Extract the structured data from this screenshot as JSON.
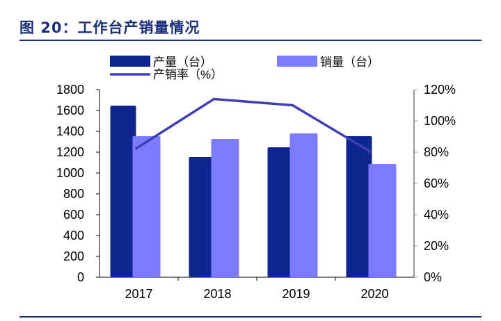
{
  "title": "图 20：工作台产销量情况",
  "chart_data": {
    "type": "bar",
    "title": "",
    "categories": [
      "2017",
      "2018",
      "2019",
      "2020"
    ],
    "series": [
      {
        "name": "产量（台）",
        "type": "bar",
        "axis": "left",
        "color": "#0f2690",
        "values": [
          1647,
          1153,
          1247,
          1353
        ]
      },
      {
        "name": "销量（台）",
        "type": "bar",
        "axis": "left",
        "color": "#7b7bff",
        "values": [
          1353,
          1327,
          1380,
          1087
        ]
      },
      {
        "name": "产销率（%）",
        "type": "line",
        "axis": "right",
        "color": "#3f3fb5",
        "values": [
          82,
          114,
          110,
          80
        ]
      }
    ],
    "ylim": [
      0,
      1800
    ],
    "y_ticks": [
      "0",
      "200",
      "400",
      "600",
      "800",
      "1000",
      "1200",
      "1400",
      "1600",
      "1800"
    ],
    "y2lim": [
      0,
      120
    ],
    "y2_ticks": [
      "0%",
      "20%",
      "40%",
      "60%",
      "80%",
      "100%",
      "120%"
    ],
    "legend": "top",
    "grid": false
  }
}
